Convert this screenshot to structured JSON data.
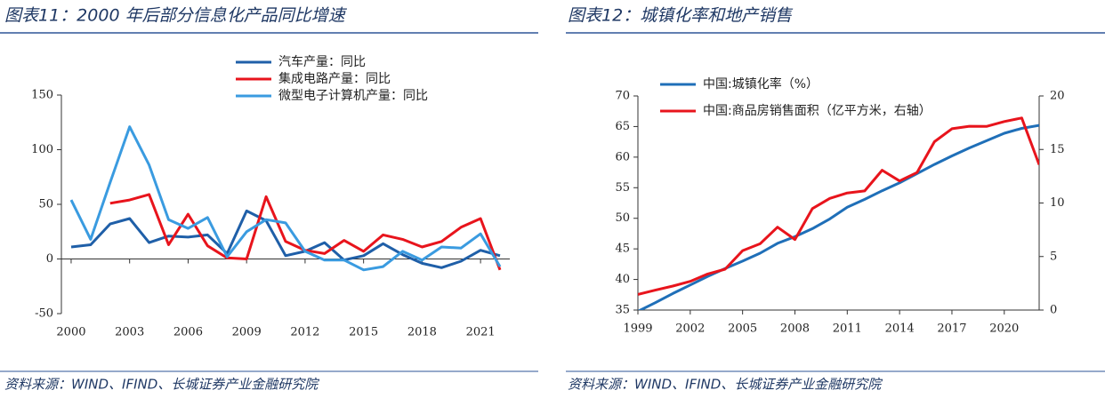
{
  "chart_data": [
    {
      "type": "line",
      "title": "图表11：2000 年后部分信息化产品同比增速",
      "source": "资料来源：WIND、IFIND、长城证券产业金融研究院",
      "x": [
        2000,
        2001,
        2002,
        2003,
        2004,
        2005,
        2006,
        2007,
        2008,
        2009,
        2010,
        2011,
        2012,
        2013,
        2014,
        2015,
        2016,
        2017,
        2018,
        2019,
        2020,
        2021,
        2022
      ],
      "series": [
        {
          "name": "汽车产量：同比",
          "color": "#1f5fa8",
          "values": [
            11,
            13,
            32,
            37,
            15,
            21,
            20,
            22,
            5,
            44,
            35,
            3,
            7,
            15,
            -1,
            3,
            14,
            4,
            -4,
            -8,
            -2,
            8,
            3
          ]
        },
        {
          "name": "集成电路产量：同比",
          "color": "#e8141c",
          "values": [
            null,
            null,
            51,
            54,
            59,
            13,
            41,
            12,
            1,
            0,
            57,
            16,
            8,
            5,
            17,
            7,
            22,
            18,
            11,
            16,
            29,
            37,
            -10
          ]
        },
        {
          "name": "微型电子计算机产量：同比",
          "color": "#3a9be0",
          "values": [
            54,
            18,
            70,
            121,
            86,
            36,
            28,
            38,
            2,
            25,
            36,
            33,
            7,
            -1,
            -1,
            -10,
            -7,
            7,
            -1,
            11,
            10,
            23,
            -7
          ]
        }
      ],
      "xlim": [
        1999.5,
        2022.5
      ],
      "xticks": [
        2000,
        2003,
        2006,
        2009,
        2012,
        2015,
        2018,
        2021
      ],
      "ylim": [
        -50,
        150
      ],
      "yticks": [
        -50,
        0,
        50,
        100,
        150
      ],
      "legend": "upper center"
    },
    {
      "type": "line",
      "title": "图表12：城镇化率和地产销售",
      "source": "资料来源：WIND、IFIND、长城证券产业金融研究院",
      "x": [
        1999,
        2000,
        2001,
        2002,
        2003,
        2004,
        2005,
        2006,
        2007,
        2008,
        2009,
        2010,
        2011,
        2012,
        2013,
        2014,
        2015,
        2016,
        2017,
        2018,
        2019,
        2020,
        2021,
        2022
      ],
      "series": [
        {
          "name": "中国:城镇化率（%）",
          "color": "#1f6fb8",
          "values": [
            34.8,
            36.2,
            37.7,
            39.1,
            40.5,
            41.8,
            43.0,
            44.3,
            45.9,
            47.0,
            48.3,
            49.9,
            51.8,
            53.1,
            54.5,
            55.8,
            57.3,
            58.8,
            60.2,
            61.5,
            62.7,
            63.9,
            64.7,
            65.2
          ]
        },
        {
          "name": "中国:商品房销售面积（亿平方米，右轴）",
          "color": "#e8141c",
          "axis": "y2",
          "values": [
            1.46,
            1.86,
            2.24,
            2.68,
            3.37,
            3.82,
            5.55,
            6.19,
            7.74,
            6.59,
            9.48,
            10.43,
            10.94,
            11.13,
            13.06,
            12.06,
            12.85,
            15.73,
            16.94,
            17.17,
            17.16,
            17.61,
            17.94,
            13.58
          ]
        }
      ],
      "xlim": [
        1999,
        2022
      ],
      "xticks": [
        1999,
        2002,
        2005,
        2008,
        2011,
        2014,
        2017,
        2020
      ],
      "ylim": [
        35,
        70
      ],
      "yticks": [
        35,
        40,
        45,
        50,
        55,
        60,
        65,
        70
      ],
      "y2lim": [
        0,
        20
      ],
      "y2ticks": [
        0,
        5,
        10,
        15,
        20
      ],
      "legend": "upper left"
    }
  ]
}
